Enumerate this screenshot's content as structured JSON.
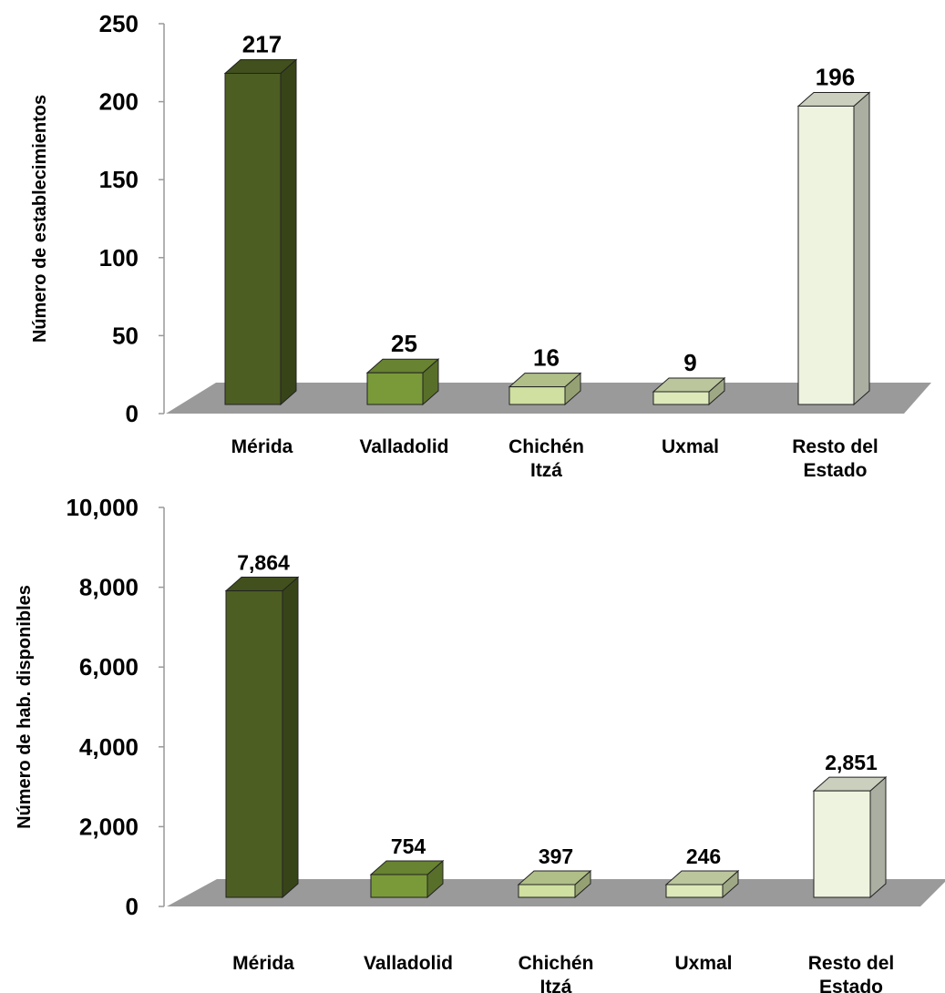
{
  "chart_data": [
    {
      "type": "bar",
      "ylabel": "Número de establecimientos",
      "categories": [
        [
          "Mérida"
        ],
        [
          "Valladolid"
        ],
        [
          "Chichén",
          "Itzá"
        ],
        [
          "Uxmal"
        ],
        [
          "Resto del",
          "Estado"
        ]
      ],
      "values": [
        217,
        25,
        16,
        9,
        196
      ],
      "value_labels": [
        "217",
        "25",
        "16",
        "9",
        "196"
      ],
      "ylim": [
        0,
        250
      ],
      "yticks": [
        "0",
        "50",
        "100",
        "150",
        "200",
        "250"
      ],
      "grid": false,
      "legend": false
    },
    {
      "type": "bar",
      "ylabel": "Número de hab. disponibles",
      "categories": [
        [
          "Mérida"
        ],
        [
          "Valladolid"
        ],
        [
          "Chichén",
          "Itzá"
        ],
        [
          "Uxmal"
        ],
        [
          "Resto del",
          "Estado"
        ]
      ],
      "values": [
        7864,
        754,
        397,
        246,
        2851
      ],
      "value_labels": [
        "7,864",
        "754",
        "397",
        "246",
        "2,851"
      ],
      "ylim": [
        0,
        10000
      ],
      "yticks": [
        "0",
        "2,000",
        "4,000",
        "6,000",
        "8,000",
        "10,000"
      ],
      "grid": false,
      "legend": false
    }
  ],
  "colors": {
    "bar_fronts": [
      "#4d5e22",
      "#7a9a3a",
      "#cfe0a0",
      "#dde9b9",
      "#eef3df"
    ],
    "floor": "#9a9a9a"
  }
}
